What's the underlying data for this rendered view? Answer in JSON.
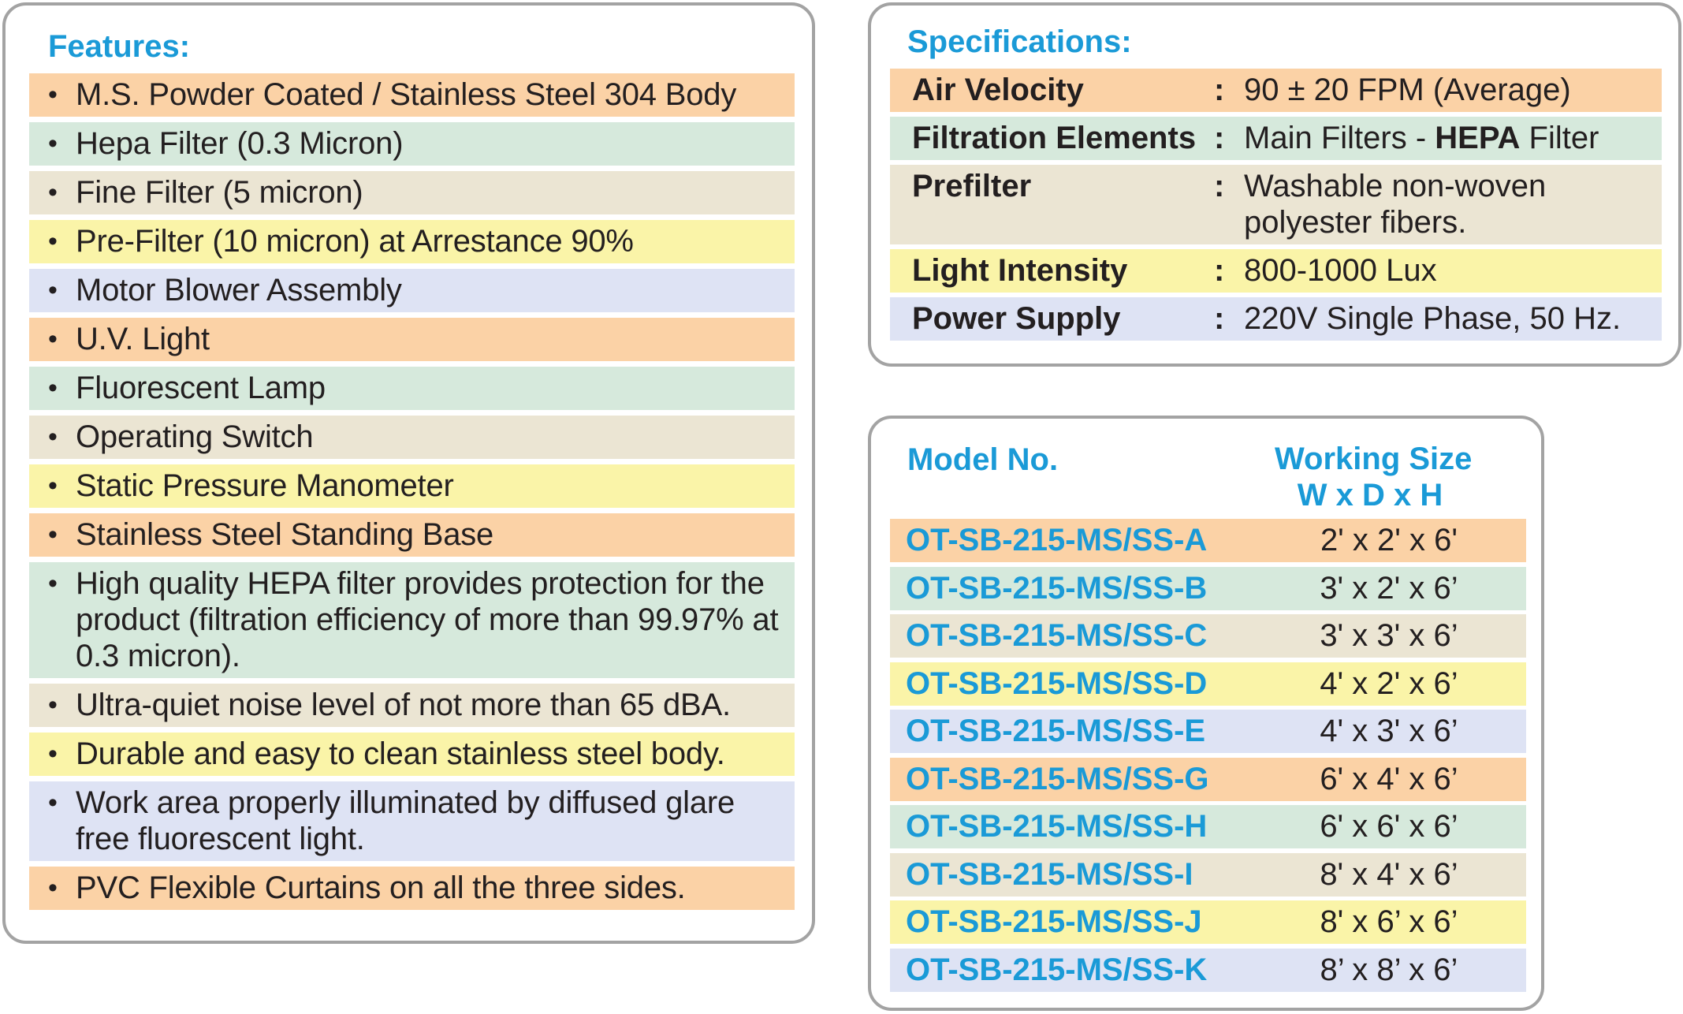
{
  "colors": {
    "accent_blue": "#1a9ad7",
    "panel_border": "#a3a3a3",
    "row_orange": "#fbd2a6",
    "row_green": "#d6e9dc",
    "row_beige": "#ebe5d3",
    "row_yellow": "#faf4a8",
    "row_lavender": "#dee3f4"
  },
  "features": {
    "title": "Features:",
    "bullet": "•",
    "items": [
      {
        "text": "M.S. Powder Coated / Stainless Steel 304 Body",
        "color": "#fbd2a6"
      },
      {
        "text": "Hepa Filter (0.3 Micron)",
        "color": "#d6e9dc"
      },
      {
        "text": "Fine Filter (5 micron)",
        "color": "#ebe5d3"
      },
      {
        "text": "Pre-Filter (10 micron) at Arrestance 90%",
        "color": "#faf4a8"
      },
      {
        "text": "Motor Blower Assembly",
        "color": "#dee3f4"
      },
      {
        "text": "U.V. Light",
        "color": "#fbd2a6"
      },
      {
        "text": "Fluorescent Lamp",
        "color": "#d6e9dc"
      },
      {
        "text": "Operating Switch",
        "color": "#ebe5d3"
      },
      {
        "text": "Static Pressure Manometer",
        "color": "#faf4a8"
      },
      {
        "text": "Stainless Steel Standing Base",
        "color": "#fbd2a6"
      },
      {
        "text": "High quality HEPA filter provides protection for the product (filtration efficiency of more than 99.97% at 0.3 micron).",
        "color": "#d6e9dc"
      },
      {
        "text": "Ultra-quiet noise level of not more than 65 dBA.",
        "color": "#ebe5d3"
      },
      {
        "text": "Durable and easy to clean stainless steel body.",
        "color": "#faf4a8"
      },
      {
        "text": "Work area properly illuminated by diffused glare free fluorescent light.",
        "color": "#dee3f4"
      },
      {
        "text": "PVC Flexible Curtains on all the three sides.",
        "color": "#fbd2a6"
      }
    ]
  },
  "specifications": {
    "title": "Specifications:",
    "colon": ":",
    "rows": [
      {
        "label": "Air Velocity",
        "value": "90 ± 20 FPM (Average)",
        "color": "#fbd2a6"
      },
      {
        "label": "Filtration Elements",
        "value_prefix": "Main Filters - ",
        "value_bold": "HEPA",
        "value_suffix": " Filter",
        "color": "#d6e9dc"
      },
      {
        "label": "Prefilter",
        "value": "Washable non-woven polyester fibers.",
        "color": "#ebe5d3"
      },
      {
        "label": "Light Intensity",
        "value": "800-1000 Lux",
        "color": "#faf4a8"
      },
      {
        "label": "Power Supply",
        "value": "220V Single Phase, 50 Hz.",
        "color": "#dee3f4"
      }
    ]
  },
  "models": {
    "header_model": "Model No.",
    "header_size_line1": "Working Size",
    "header_size_line2": "W x D x H",
    "rows": [
      {
        "model": "OT-SB-215-MS/SS-A",
        "size": "2' x 2' x 6'",
        "color": "#fbd2a6"
      },
      {
        "model": "OT-SB-215-MS/SS-B",
        "size": "3' x 2' x 6’",
        "color": "#d6e9dc"
      },
      {
        "model": "OT-SB-215-MS/SS-C",
        "size": "3' x 3' x 6’",
        "color": "#ebe5d3"
      },
      {
        "model": "OT-SB-215-MS/SS-D",
        "size": "4' x 2' x 6’",
        "color": "#faf4a8"
      },
      {
        "model": "OT-SB-215-MS/SS-E",
        "size": "4' x 3' x 6’",
        "color": "#dee3f4"
      },
      {
        "model": "OT-SB-215-MS/SS-G",
        "size": "6' x 4' x 6’",
        "color": "#fbd2a6"
      },
      {
        "model": "OT-SB-215-MS/SS-H",
        "size": "6' x 6' x 6’",
        "color": "#d6e9dc"
      },
      {
        "model": "OT-SB-215-MS/SS-I",
        "size": "8' x 4' x 6’",
        "color": "#ebe5d3"
      },
      {
        "model": "OT-SB-215-MS/SS-J",
        "size": "8' x 6’ x 6’",
        "color": "#faf4a8"
      },
      {
        "model": "OT-SB-215-MS/SS-K",
        "size": "8’ x 8’ x 6’",
        "color": "#dee3f4"
      }
    ]
  }
}
